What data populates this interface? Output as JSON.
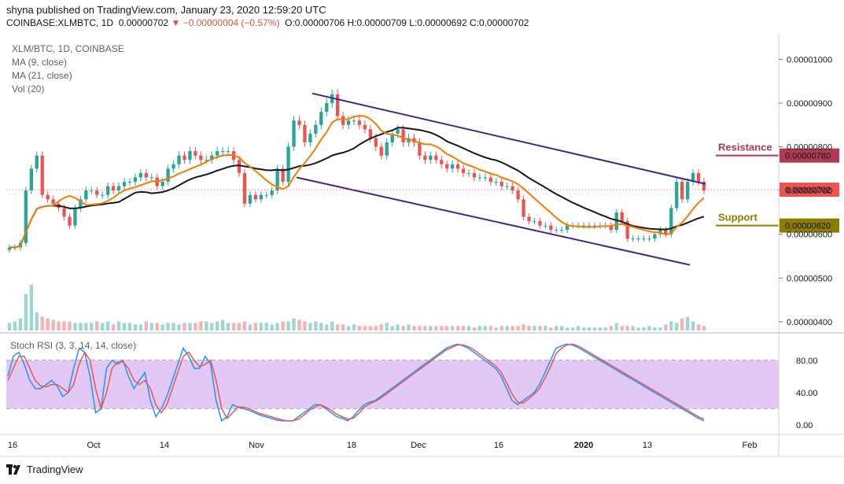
{
  "header": {
    "publisher_line": "shyna published on TradingView.com, January 23, 2020 12:59:20 UTC",
    "symbol": "COINBASE:XLMBTC, 1D",
    "last": "0.00000702",
    "change": "−0.00000004 (−0.57%)",
    "open": "O:0.00000706",
    "high": "H:0.00000709",
    "low": "L:0.00000692",
    "close": "C:0.00000702"
  },
  "indicators": {
    "pair": "XLM/BTC, 1D, COINBASE",
    "ma9": "MA (9, close)",
    "ma21": "MA (21, close)",
    "vol": "Vol (20)",
    "stoch": "Stoch RSI (3, 3, 14, 14, close)"
  },
  "footer": {
    "brand": "TradingView"
  },
  "colors": {
    "up": "#26a69a",
    "down": "#ef5350",
    "ma9": "#f57c00",
    "ma21": "#131722",
    "channel": "#3f2a8c",
    "resistance": "#b03a52",
    "support": "#8a7d00",
    "k": "#2196f3",
    "d": "#ef5350",
    "rsi_band": "#e1c8f5"
  },
  "chart_data": [
    {
      "type": "candlestick",
      "title": "XLM/BTC, 1D, COINBASE",
      "y_ticks": [
        "0.00001000",
        "0.00000900",
        "0.00000800",
        "0.00000700",
        "0.00000600",
        "0.00000500",
        "0.00000400"
      ],
      "y_range": [
        3.8e-06,
        1.06e-05
      ],
      "x_ticks": [
        "16",
        "Oct",
        "14",
        "Nov",
        "18",
        "Dec",
        "16",
        "2020",
        "13",
        "Feb"
      ],
      "price_tag": "0.00000702",
      "levels": [
        {
          "name": "Resistance",
          "label": "Resistance",
          "value": 7.8e-06,
          "tag": "0.00000780"
        },
        {
          "name": "Support",
          "label": "Support",
          "value": 6.2e-06,
          "tag": "0.00000620"
        }
      ],
      "channel_upper": [
        [
          9.22e-06,
          0
        ],
        [
          7.15e-06,
          1
        ]
      ],
      "channel_lower": [
        [
          7.3e-06,
          0
        ],
        [
          5.3e-06,
          1
        ]
      ],
      "closes": [
        5.7e-06,
        5.7e-06,
        5.8e-06,
        7e-06,
        7.5e-06,
        7.8e-06,
        6.9e-06,
        6.8e-06,
        6.7e-06,
        6.6e-06,
        6.4e-06,
        6.2e-06,
        6.6e-06,
        6.8e-06,
        7e-06,
        7e-06,
        6.9e-06,
        6.9e-06,
        7.1e-06,
        7e-06,
        7.1e-06,
        7.2e-06,
        7.2e-06,
        7.3e-06,
        7.4e-06,
        7.3e-06,
        7.3e-06,
        7.1e-06,
        7.2e-06,
        7.5e-06,
        7.6e-06,
        7.8e-06,
        7.7e-06,
        7.9e-06,
        7.8e-06,
        7.7e-06,
        7.7e-06,
        7.8e-06,
        7.9e-06,
        7.9e-06,
        7.9e-06,
        7.7e-06,
        7.4e-06,
        6.7e-06,
        6.9e-06,
        6.8e-06,
        6.9e-06,
        6.9e-06,
        7e-06,
        7.5e-06,
        7.2e-06,
        8e-06,
        8.6e-06,
        8.5e-06,
        8.1e-06,
        8.3e-06,
        8.5e-06,
        8.8e-06,
        9e-06,
        9.2e-06,
        8.7e-06,
        8.5e-06,
        8.6e-06,
        8.6e-06,
        8.5e-06,
        8.4e-06,
        8.2e-06,
        8e-06,
        7.8e-06,
        8.1e-06,
        8.3e-06,
        8.4e-06,
        8.1e-06,
        8.2e-06,
        8.1e-06,
        7.8e-06,
        7.7e-06,
        7.8e-06,
        7.7e-06,
        7.6e-06,
        7.5e-06,
        7.6e-06,
        7.5e-06,
        7.4e-06,
        7.4e-06,
        7.3e-06,
        7.3e-06,
        7.3e-06,
        7.2e-06,
        7.2e-06,
        7.1e-06,
        7.1e-06,
        7e-06,
        6.8e-06,
        6.4e-06,
        6.3e-06,
        6.3e-06,
        6.2e-06,
        6.2e-06,
        6.1e-06,
        6.1e-06,
        6.1e-06,
        6.2e-06,
        6.2e-06,
        6.2e-06,
        6.2e-06,
        6.2e-06,
        6.2e-06,
        6.2e-06,
        6.2e-06,
        6.1e-06,
        6.5e-06,
        6.3e-06,
        5.9e-06,
        5.9e-06,
        5.9e-06,
        5.9e-06,
        5.9e-06,
        6e-06,
        6.1e-06,
        6e-06,
        6.6e-06,
        7.2e-06,
        6.8e-06,
        7.2e-06,
        7.4e-06,
        7.2e-06,
        7e-06
      ],
      "volume": [
        5,
        6,
        8,
        24,
        30,
        12,
        9,
        8,
        7,
        6,
        6,
        6,
        5,
        5,
        5,
        5,
        6,
        5,
        6,
        4,
        6,
        5,
        5,
        4,
        4,
        6,
        5,
        5,
        4,
        5,
        5,
        4,
        5,
        5,
        5,
        6,
        6,
        5,
        6,
        7,
        5,
        5,
        5,
        6,
        4,
        5,
        5,
        5,
        4,
        5,
        6,
        6,
        8,
        7,
        6,
        5,
        6,
        5,
        4,
        6,
        4,
        4,
        3,
        4,
        3,
        3,
        3,
        3,
        4,
        5,
        3,
        4,
        3,
        4,
        3,
        3,
        3,
        3,
        3,
        3,
        3,
        3,
        3,
        3,
        3,
        2,
        3,
        3,
        3,
        2,
        3,
        3,
        3,
        3,
        4,
        3,
        3,
        3,
        3,
        2,
        3,
        3,
        2,
        2,
        3,
        2,
        2,
        2,
        2,
        2,
        3,
        5,
        3,
        3,
        3,
        2,
        2,
        3,
        2,
        2,
        4,
        6,
        5,
        8,
        9,
        6,
        4,
        3
      ]
    },
    {
      "type": "line",
      "title": "Stoch RSI (3, 3, 14, 14, close)",
      "y_ticks": [
        "80.00",
        "40.00",
        "0.00"
      ],
      "y_range": [
        -8,
        112
      ],
      "bands": [
        20,
        80
      ],
      "series": [
        {
          "name": "%K",
          "values": [
            60,
            85,
            90,
            75,
            55,
            45,
            45,
            50,
            55,
            48,
            35,
            40,
            70,
            95,
            90,
            60,
            15,
            20,
            70,
            80,
            75,
            80,
            60,
            45,
            55,
            65,
            30,
            10,
            20,
            35,
            55,
            75,
            95,
            85,
            70,
            70,
            85,
            75,
            30,
            5,
            10,
            25,
            22,
            20,
            18,
            15,
            12,
            10,
            8,
            6,
            5,
            5,
            5,
            10,
            15,
            20,
            25,
            25,
            20,
            15,
            10,
            8,
            5,
            10,
            18,
            25,
            28,
            30,
            35,
            40,
            45,
            50,
            55,
            60,
            65,
            70,
            75,
            80,
            85,
            90,
            95,
            98,
            100,
            98,
            95,
            90,
            85,
            80,
            75,
            70,
            60,
            45,
            30,
            25,
            30,
            35,
            40,
            50,
            65,
            80,
            95,
            98,
            100,
            99,
            96,
            92,
            88,
            84,
            80,
            76,
            72,
            68,
            64,
            60,
            56,
            52,
            48,
            44,
            40,
            36,
            32,
            28,
            24,
            20,
            16,
            12,
            8,
            5
          ]
        },
        {
          "name": "%D",
          "values": [
            55,
            70,
            85,
            85,
            70,
            55,
            48,
            47,
            50,
            50,
            45,
            40,
            50,
            75,
            90,
            80,
            45,
            20,
            40,
            70,
            78,
            78,
            70,
            55,
            50,
            55,
            45,
            25,
            15,
            25,
            45,
            65,
            85,
            90,
            80,
            72,
            75,
            80,
            55,
            20,
            8,
            15,
            22,
            22,
            20,
            17,
            14,
            12,
            10,
            8,
            6,
            5,
            5,
            7,
            12,
            18,
            22,
            25,
            22,
            18,
            13,
            10,
            7,
            8,
            14,
            22,
            26,
            29,
            33,
            38,
            43,
            48,
            53,
            58,
            63,
            68,
            73,
            78,
            83,
            88,
            93,
            96,
            99,
            99,
            97,
            93,
            88,
            83,
            78,
            73,
            65,
            52,
            38,
            28,
            27,
            32,
            38,
            45,
            58,
            72,
            88,
            95,
            99,
            100,
            98,
            94,
            90,
            86,
            82,
            78,
            74,
            70,
            66,
            62,
            58,
            54,
            50,
            46,
            42,
            38,
            34,
            30,
            26,
            22,
            18,
            14,
            10,
            7
          ]
        }
      ]
    }
  ]
}
